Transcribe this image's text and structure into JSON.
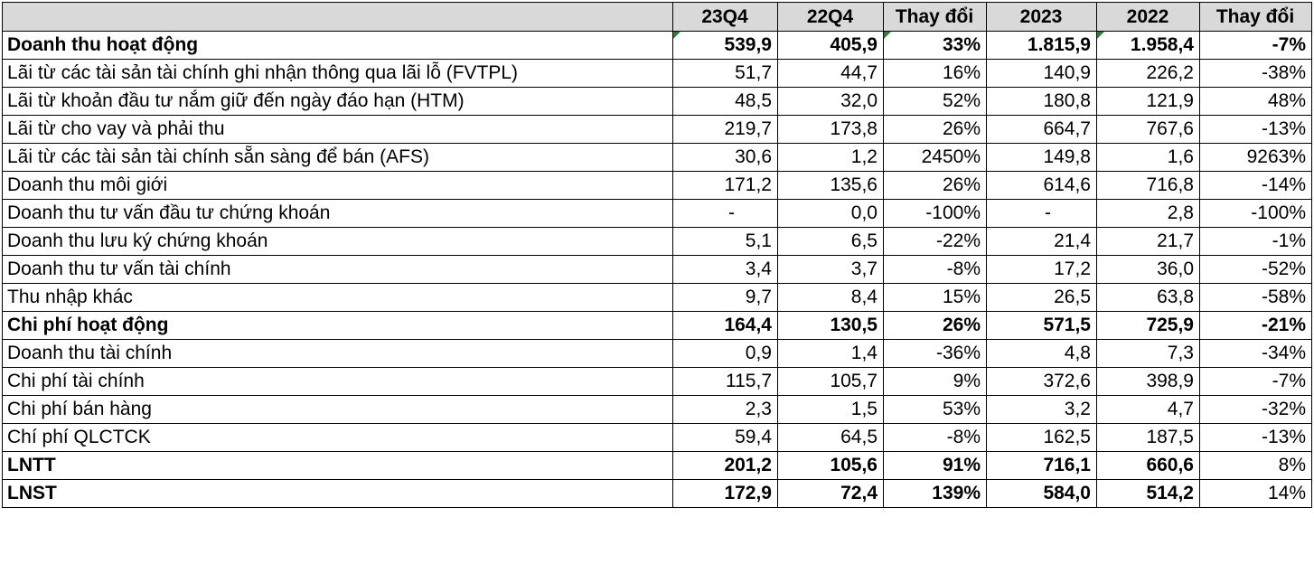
{
  "header": {
    "label": "",
    "q_current": "23Q4",
    "q_previous": "22Q4",
    "q_change": "Thay đổi",
    "y_current": "2023",
    "y_previous": "2022",
    "y_change": "Thay đổi"
  },
  "rows": [
    {
      "label": "Doanh thu hoạt động",
      "q1": "539,9",
      "q2": "405,9",
      "qc": "33%",
      "y1": "1.815,9",
      "y2": "1.958,4",
      "yc": "-7%"
    },
    {
      "label": "Lãi từ các tài sản tài chính ghi nhận thông qua lãi lỗ (FVTPL)",
      "q1": "51,7",
      "q2": "44,7",
      "qc": "16%",
      "y1": "140,9",
      "y2": "226,2",
      "yc": "-38%"
    },
    {
      "label": "Lãi từ khoản đầu tư nắm giữ đến ngày đáo hạn (HTM)",
      "q1": "48,5",
      "q2": "32,0",
      "qc": "52%",
      "y1": "180,8",
      "y2": "121,9",
      "yc": "48%"
    },
    {
      "label": "Lãi từ cho vay và phải thu",
      "q1": "219,7",
      "q2": "173,8",
      "qc": "26%",
      "y1": "664,7",
      "y2": "767,6",
      "yc": "-13%"
    },
    {
      "label": "Lãi từ các tài sản tài chính sẵn sàng để bán (AFS)",
      "q1": "30,6",
      "q2": "1,2",
      "qc": "2450%",
      "y1": "149,8",
      "y2": "1,6",
      "yc": "9263%"
    },
    {
      "label": "Doanh thu môi giới",
      "q1": "171,2",
      "q2": "135,6",
      "qc": "26%",
      "y1": "614,6",
      "y2": "716,8",
      "yc": "-14%"
    },
    {
      "label": "Doanh thu tư vấn đầu tư chứng khoán",
      "q1": "-",
      "q2": "0,0",
      "qc": "-100%",
      "y1": "-",
      "y2": "2,8",
      "yc": "-100%"
    },
    {
      "label": "Doanh thu lưu ký chứng khoán",
      "q1": "5,1",
      "q2": "6,5",
      "qc": "-22%",
      "y1": "21,4",
      "y2": "21,7",
      "yc": "-1%"
    },
    {
      "label": "Doanh thu tư vấn tài chính",
      "q1": "3,4",
      "q2": "3,7",
      "qc": "-8%",
      "y1": "17,2",
      "y2": "36,0",
      "yc": "-52%"
    },
    {
      "label": "Thu nhập khác",
      "q1": "9,7",
      "q2": "8,4",
      "qc": "15%",
      "y1": "26,5",
      "y2": "63,8",
      "yc": "-58%"
    },
    {
      "label": "Chi phí hoạt động",
      "q1": "164,4",
      "q2": "130,5",
      "qc": "26%",
      "y1": "571,5",
      "y2": "725,9",
      "yc": "-21%"
    },
    {
      "label": "Doanh thu tài chính",
      "q1": "0,9",
      "q2": "1,4",
      "qc": "-36%",
      "y1": "4,8",
      "y2": "7,3",
      "yc": "-34%"
    },
    {
      "label": "Chi phí tài chính",
      "q1": "115,7",
      "q2": "105,7",
      "qc": "9%",
      "y1": "372,6",
      "y2": "398,9",
      "yc": "-7%"
    },
    {
      "label": "Chi phí bán hàng",
      "q1": "2,3",
      "q2": "1,5",
      "qc": "53%",
      "y1": "3,2",
      "y2": "4,7",
      "yc": "-32%"
    },
    {
      "label": "Chí phí QLCTCK",
      "q1": "59,4",
      "q2": "64,5",
      "qc": "-8%",
      "y1": "162,5",
      "y2": "187,5",
      "yc": "-13%"
    },
    {
      "label": "LNTT",
      "q1": "201,2",
      "q2": "105,6",
      "qc": "91%",
      "y1": "716,1",
      "y2": "660,6",
      "yc": "8%"
    },
    {
      "label": "LNST",
      "q1": "172,9",
      "q2": "72,4",
      "qc": "139%",
      "y1": "584,0",
      "y2": "514,2",
      "yc": "14%"
    }
  ],
  "colors": {
    "header_bg": "#d9d9d9",
    "border": "#000000",
    "error_indicator": "#2e7d32"
  }
}
